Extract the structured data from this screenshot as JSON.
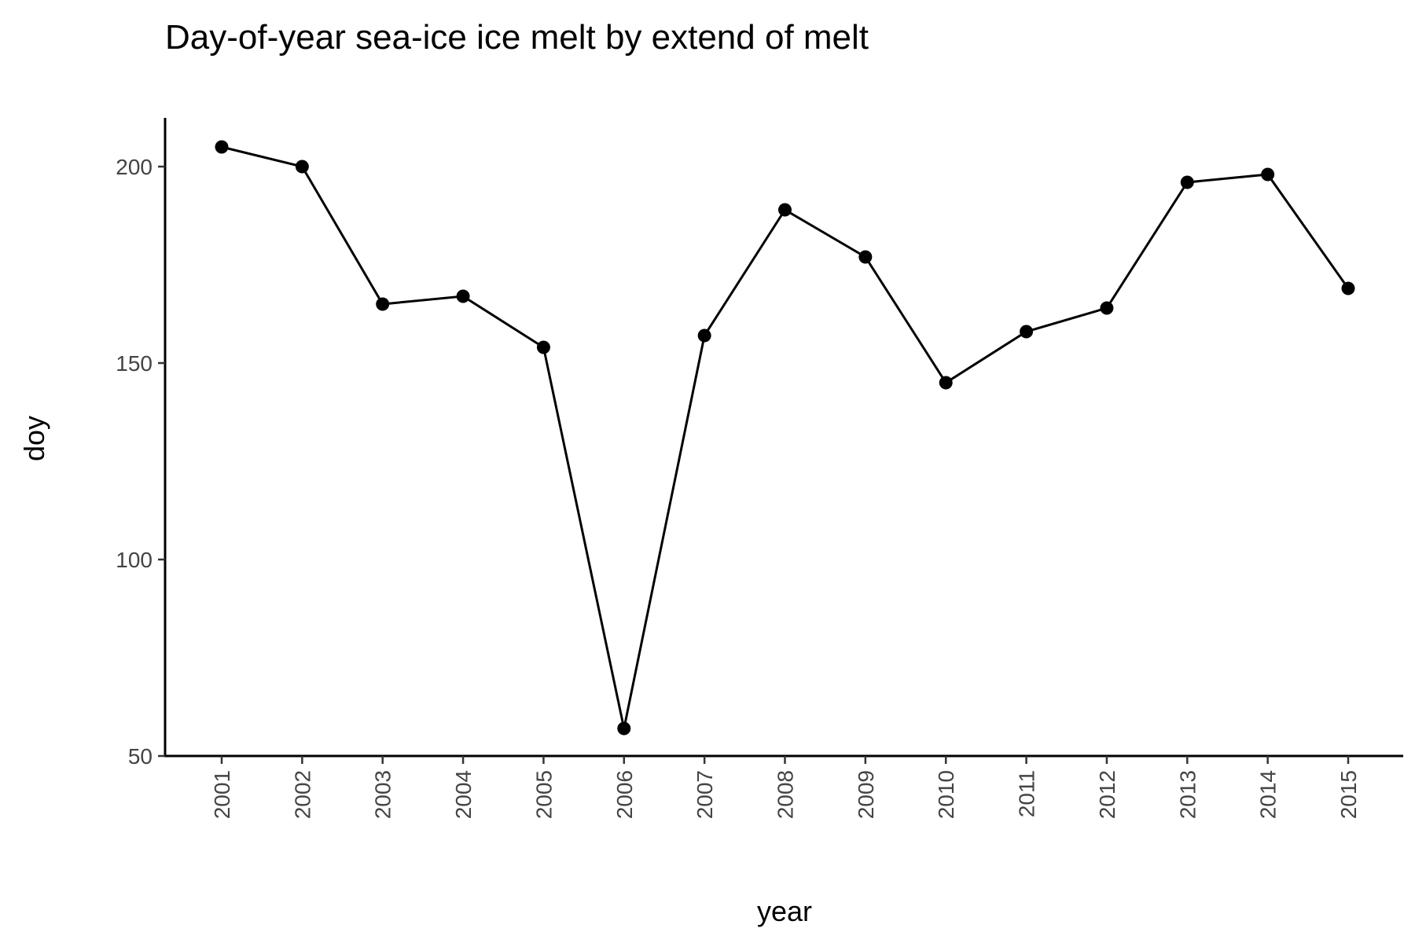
{
  "chart_data": {
    "type": "line",
    "title": "Day-of-year sea-ice ice melt by extend of melt",
    "xlabel": "year",
    "ylabel": "doy",
    "categories": [
      "2001",
      "2002",
      "2003",
      "2004",
      "2005",
      "2006",
      "2007",
      "2008",
      "2009",
      "2010",
      "2011",
      "2012",
      "2013",
      "2014",
      "2015"
    ],
    "series": [
      {
        "values": [
          205,
          200,
          165,
          167,
          154,
          57,
          157,
          189,
          177,
          145,
          158,
          164,
          196,
          198,
          169
        ]
      }
    ],
    "ylim": [
      50,
      212
    ],
    "yticks": [
      50,
      100,
      150,
      200
    ],
    "grid": false,
    "line_color": "#000000",
    "point_color": "#000000"
  }
}
